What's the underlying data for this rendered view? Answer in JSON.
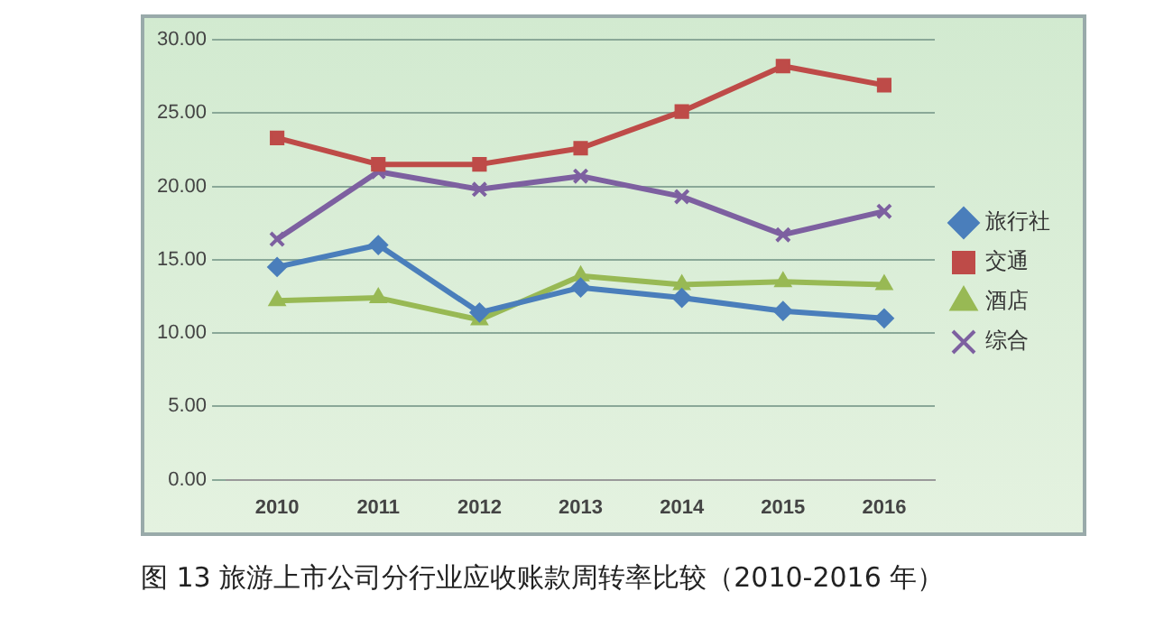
{
  "chart_data": {
    "type": "line",
    "categories": [
      "2010",
      "2011",
      "2012",
      "2013",
      "2014",
      "2015",
      "2016"
    ],
    "series": [
      {
        "name": "旅行社",
        "color": "#4a7ebb",
        "marker": "diamond",
        "values": [
          14.5,
          16.0,
          11.4,
          13.1,
          12.4,
          11.5,
          11.0
        ]
      },
      {
        "name": "交通",
        "color": "#be4b48",
        "marker": "square",
        "values": [
          23.3,
          21.5,
          21.5,
          22.6,
          25.1,
          28.2,
          26.9
        ]
      },
      {
        "name": "酒店",
        "color": "#98b954",
        "marker": "triangle",
        "values": [
          12.2,
          12.4,
          10.9,
          13.9,
          13.3,
          13.5,
          13.3
        ]
      },
      {
        "name": "综合",
        "color": "#7d60a0",
        "marker": "cross",
        "values": [
          16.4,
          21.0,
          19.8,
          20.7,
          19.3,
          16.7,
          18.3
        ]
      }
    ],
    "ylim": [
      0,
      30
    ],
    "yticks": [
      {
        "value": 0,
        "label": "0.00"
      },
      {
        "value": 5,
        "label": "5.00"
      },
      {
        "value": 10,
        "label": "10.00"
      },
      {
        "value": 15,
        "label": "15.00"
      },
      {
        "value": 20,
        "label": "20.00"
      },
      {
        "value": 25,
        "label": "25.00"
      },
      {
        "value": 30,
        "label": "30.00"
      }
    ],
    "grid": "y",
    "legend": "right",
    "line_style": "solid",
    "annotations": [
      "图 13  旅游上市公司分行业应收账款周转率比较（2010-2016 年）"
    ]
  }
}
